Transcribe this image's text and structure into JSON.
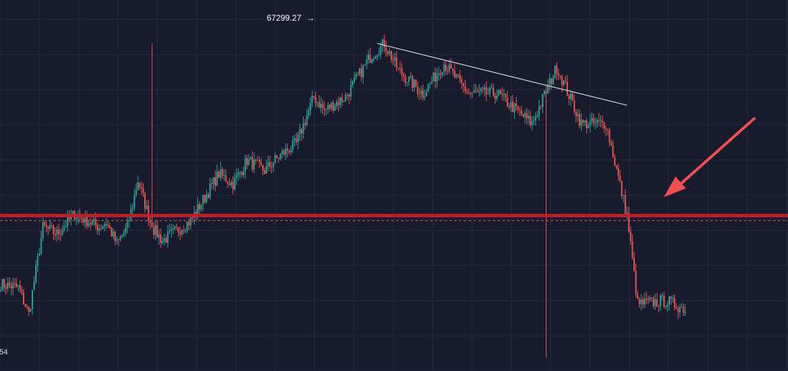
{
  "chart_data": {
    "type": "candlestick",
    "title": "",
    "xlabel": "",
    "ylabel": "",
    "ylim": [
      57500,
      68600
    ],
    "grid": true,
    "candle_count": 390,
    "high_annotation": {
      "value": 67299.27,
      "text": "67299.27",
      "arrow": "→"
    },
    "left_edge_label": "54",
    "support_level": 62150,
    "current_price": 62000,
    "anchors": [
      [
        0,
        60100
      ],
      [
        10,
        60000
      ],
      [
        16,
        59200
      ],
      [
        24,
        61800
      ],
      [
        32,
        61600
      ],
      [
        42,
        62200
      ],
      [
        56,
        61800
      ],
      [
        60,
        61950
      ],
      [
        66,
        61300
      ],
      [
        72,
        61800
      ],
      [
        78,
        63200
      ],
      [
        86,
        61800
      ],
      [
        92,
        61400
      ],
      [
        100,
        61700
      ],
      [
        108,
        62000
      ],
      [
        116,
        62700
      ],
      [
        124,
        63400
      ],
      [
        132,
        63100
      ],
      [
        140,
        63800
      ],
      [
        150,
        63500
      ],
      [
        160,
        64000
      ],
      [
        168,
        64300
      ],
      [
        178,
        65700
      ],
      [
        184,
        65300
      ],
      [
        196,
        65700
      ],
      [
        210,
        66900
      ],
      [
        218,
        67299
      ],
      [
        226,
        66500
      ],
      [
        240,
        65800
      ],
      [
        252,
        66700
      ],
      [
        266,
        65800
      ],
      [
        282,
        65800
      ],
      [
        302,
        64900
      ],
      [
        316,
        66600
      ],
      [
        330,
        64900
      ],
      [
        344,
        64900
      ],
      [
        356,
        62150
      ],
      [
        362,
        59500
      ],
      [
        378,
        59600
      ],
      [
        396,
        59200
      ],
      [
        424,
        60000
      ],
      [
        454,
        60800
      ],
      [
        476,
        61600
      ],
      [
        480,
        62300
      ],
      [
        500,
        62100
      ],
      [
        530,
        62000
      ]
    ],
    "trendline": {
      "from": [
        214,
        67299
      ],
      "to": [
        356,
        65450
      ]
    },
    "colors": {
      "background": "#181b2d",
      "grid": "#262a40",
      "up": "#26a69a",
      "down": "#ef5350",
      "support": "#c21f2a",
      "price_line": "#d9545c",
      "trendline": "#d1d4dc",
      "arrow": "#f44d52"
    }
  }
}
